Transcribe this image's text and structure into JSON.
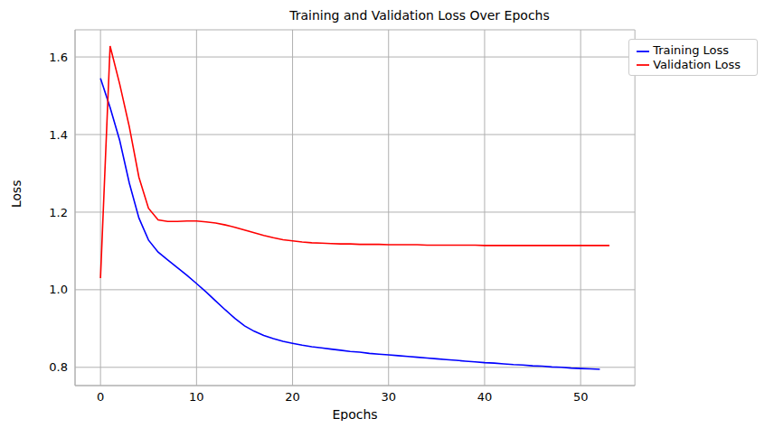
{
  "chart_data": {
    "type": "line",
    "title": "Training and Validation Loss Over Epochs",
    "x_label": "Epochs",
    "y_label": "Loss",
    "x": [
      0,
      1,
      2,
      3,
      4,
      5,
      6,
      7,
      8,
      9,
      10,
      11,
      12,
      13,
      14,
      15,
      16,
      17,
      18,
      19,
      20,
      21,
      22,
      23,
      24,
      25,
      26,
      27,
      28,
      29,
      30,
      31,
      32,
      33,
      34,
      35,
      36,
      37,
      38,
      39,
      40,
      41,
      42,
      43,
      44,
      45,
      46,
      47,
      48,
      49,
      50,
      51,
      52,
      53
    ],
    "series": [
      {
        "name": "Training Loss",
        "color": "#0000ff",
        "values": [
          1.545,
          1.47,
          1.385,
          1.275,
          1.185,
          1.128,
          1.097,
          1.077,
          1.057,
          1.037,
          1.016,
          0.994,
          0.971,
          0.948,
          0.926,
          0.907,
          0.893,
          0.882,
          0.874,
          0.867,
          0.862,
          0.857,
          0.853,
          0.85,
          0.847,
          0.844,
          0.841,
          0.839,
          0.836,
          0.834,
          0.832,
          0.83,
          0.828,
          0.826,
          0.824,
          0.822,
          0.82,
          0.818,
          0.816,
          0.814,
          0.812,
          0.811,
          0.809,
          0.807,
          0.806,
          0.804,
          0.803,
          0.801,
          0.8,
          0.798,
          0.797,
          0.796,
          0.795,
          null
        ]
      },
      {
        "name": "Validation Loss",
        "color": "#ff0000",
        "values": [
          1.03,
          1.628,
          1.53,
          1.42,
          1.29,
          1.21,
          1.18,
          1.176,
          1.176,
          1.177,
          1.177,
          1.175,
          1.172,
          1.167,
          1.161,
          1.154,
          1.147,
          1.14,
          1.134,
          1.129,
          1.126,
          1.123,
          1.121,
          1.12,
          1.119,
          1.118,
          1.118,
          1.117,
          1.117,
          1.117,
          1.116,
          1.116,
          1.116,
          1.116,
          1.115,
          1.115,
          1.115,
          1.115,
          1.115,
          1.115,
          1.114,
          1.114,
          1.114,
          1.114,
          1.114,
          1.114,
          1.114,
          1.114,
          1.114,
          1.114,
          1.114,
          1.114,
          1.114,
          1.114
        ]
      }
    ],
    "xlim": [
      -2.65,
      55.65
    ],
    "xticks": [
      0,
      10,
      20,
      30,
      40,
      50
    ],
    "ylim": [
      0.753,
      1.67
    ],
    "yticks": [
      0.8,
      {
        "value": 1,
        "label": "1.0"
      },
      1.2,
      1.4,
      1.6
    ],
    "grid": true,
    "legend": "upper right"
  }
}
